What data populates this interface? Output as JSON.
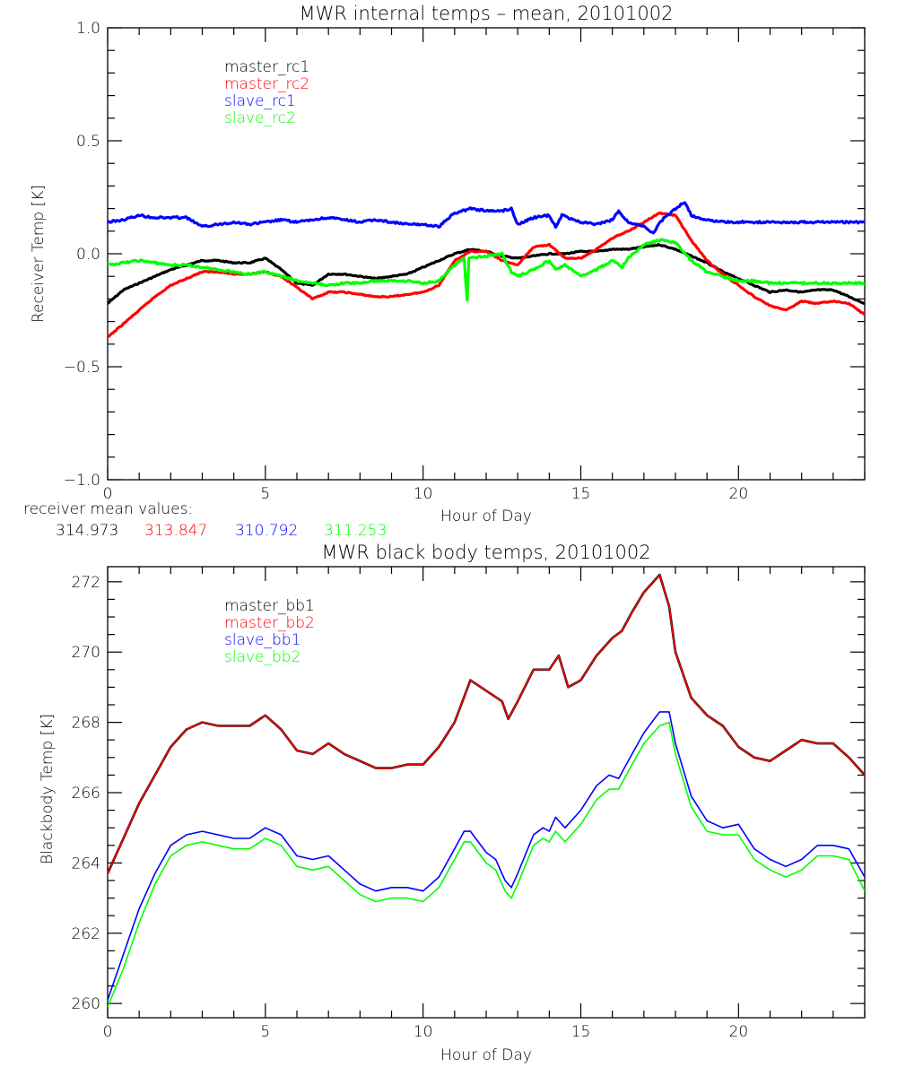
{
  "chart_data": [
    {
      "type": "line",
      "title": "MWR internal temps – mean, 20101002",
      "xlabel": "Hour of Day",
      "ylabel": "Receiver Temp [K]",
      "xlim": [
        0,
        24
      ],
      "ylim": [
        -1.0,
        1.0
      ],
      "xticks": [
        0,
        5,
        10,
        15,
        20
      ],
      "xtick_labels": [
        "0",
        "5",
        "10",
        "15",
        "20"
      ],
      "yticks": [
        -1.0,
        -0.5,
        0.0,
        0.5,
        1.0
      ],
      "ytick_labels": [
        "−1.0",
        "−0.5",
        "0.0",
        "0.5",
        "1.0"
      ],
      "grid": false,
      "legend_position": "top-left-inside",
      "series": [
        {
          "name": "master_rc1",
          "color": "#000000",
          "x": [
            0,
            0.5,
            1,
            1.5,
            2,
            2.5,
            3,
            3.5,
            4,
            4.5,
            5,
            5.5,
            6,
            6.5,
            7,
            7.5,
            8,
            8.5,
            9,
            9.5,
            10,
            10.5,
            11,
            11.5,
            12,
            12.5,
            13,
            13.5,
            14,
            14.5,
            15,
            15.5,
            16,
            16.5,
            17,
            17.5,
            18,
            18.5,
            19,
            19.5,
            20,
            20.5,
            21,
            21.5,
            22,
            22.5,
            23,
            23.5,
            24
          ],
          "y": [
            -0.22,
            -0.16,
            -0.13,
            -0.1,
            -0.07,
            -0.05,
            -0.03,
            -0.03,
            -0.04,
            -0.04,
            -0.02,
            -0.07,
            -0.13,
            -0.14,
            -0.09,
            -0.09,
            -0.1,
            -0.11,
            -0.1,
            -0.09,
            -0.06,
            -0.03,
            0.0,
            0.02,
            0.01,
            -0.01,
            -0.02,
            -0.01,
            0.0,
            0.0,
            0.01,
            0.01,
            0.02,
            0.02,
            0.03,
            0.04,
            0.02,
            -0.01,
            -0.04,
            -0.08,
            -0.11,
            -0.14,
            -0.17,
            -0.16,
            -0.17,
            -0.16,
            -0.16,
            -0.19,
            -0.22
          ]
        },
        {
          "name": "master_rc2",
          "color": "#ff0000",
          "x": [
            0,
            0.5,
            1,
            1.5,
            2,
            2.5,
            3,
            3.5,
            4,
            4.5,
            5,
            5.5,
            6,
            6.5,
            7,
            7.5,
            8,
            8.5,
            9,
            9.5,
            10,
            10.5,
            11,
            11.5,
            12,
            12.5,
            13,
            13.5,
            14,
            14.5,
            15,
            15.5,
            16,
            16.5,
            17,
            17.5,
            18,
            18.5,
            19,
            19.5,
            20,
            20.5,
            21,
            21.5,
            22,
            22.5,
            23,
            23.5,
            24
          ],
          "y": [
            -0.37,
            -0.31,
            -0.25,
            -0.19,
            -0.14,
            -0.11,
            -0.08,
            -0.08,
            -0.09,
            -0.09,
            -0.08,
            -0.1,
            -0.15,
            -0.2,
            -0.17,
            -0.17,
            -0.18,
            -0.19,
            -0.19,
            -0.18,
            -0.17,
            -0.14,
            -0.03,
            0.01,
            0.01,
            -0.03,
            -0.05,
            0.03,
            0.04,
            -0.02,
            -0.02,
            0.02,
            0.07,
            0.1,
            0.14,
            0.18,
            0.17,
            0.06,
            -0.03,
            -0.09,
            -0.14,
            -0.19,
            -0.23,
            -0.25,
            -0.21,
            -0.22,
            -0.21,
            -0.22,
            -0.27
          ]
        },
        {
          "name": "slave_rc1",
          "color": "#0000ff",
          "x": [
            0,
            0.5,
            1,
            1.5,
            2,
            2.5,
            3,
            3.5,
            4,
            4.5,
            5,
            5.5,
            6,
            6.5,
            7,
            7.5,
            8,
            8.5,
            9,
            9.5,
            10,
            10.5,
            11,
            11.5,
            12,
            12.5,
            12.8,
            13,
            13.5,
            14,
            14.2,
            14.4,
            15,
            15.5,
            16,
            16.2,
            16.5,
            17,
            17.3,
            17.5,
            18,
            18.3,
            18.5,
            19,
            19.5,
            20,
            20.5,
            21,
            21.5,
            22,
            22.5,
            23,
            23.5,
            24
          ],
          "y": [
            0.14,
            0.15,
            0.17,
            0.16,
            0.16,
            0.16,
            0.12,
            0.13,
            0.14,
            0.13,
            0.14,
            0.15,
            0.14,
            0.15,
            0.16,
            0.15,
            0.14,
            0.15,
            0.14,
            0.13,
            0.13,
            0.12,
            0.18,
            0.2,
            0.19,
            0.19,
            0.2,
            0.13,
            0.16,
            0.17,
            0.12,
            0.17,
            0.14,
            0.13,
            0.15,
            0.19,
            0.14,
            0.12,
            0.09,
            0.14,
            0.2,
            0.23,
            0.17,
            0.15,
            0.14,
            0.14,
            0.14,
            0.14,
            0.14,
            0.14,
            0.14,
            0.14,
            0.14,
            0.14
          ]
        },
        {
          "name": "slave_rc2",
          "color": "#00ff00",
          "x": [
            0,
            0.5,
            1,
            1.5,
            2,
            2.5,
            3,
            3.5,
            4,
            4.5,
            5,
            5.5,
            6,
            6.5,
            7,
            7.5,
            8,
            8.5,
            9,
            9.5,
            10,
            10.5,
            11,
            11.3,
            11.4,
            11.45,
            11.5,
            12,
            12.5,
            12.8,
            13,
            13.5,
            14,
            14.2,
            14.5,
            15,
            15.5,
            16,
            16.3,
            16.5,
            17,
            17.5,
            18,
            18.5,
            19,
            19.5,
            20,
            20.5,
            21,
            21.5,
            22,
            22.5,
            23,
            23.5,
            24
          ],
          "y": [
            -0.05,
            -0.04,
            -0.03,
            -0.04,
            -0.05,
            -0.05,
            -0.06,
            -0.07,
            -0.08,
            -0.09,
            -0.08,
            -0.1,
            -0.12,
            -0.13,
            -0.14,
            -0.13,
            -0.13,
            -0.12,
            -0.12,
            -0.12,
            -0.13,
            -0.12,
            -0.05,
            -0.02,
            -0.21,
            -0.02,
            -0.02,
            -0.01,
            0.0,
            -0.08,
            -0.1,
            -0.07,
            -0.03,
            -0.07,
            -0.05,
            -0.1,
            -0.07,
            -0.03,
            -0.06,
            -0.02,
            0.04,
            0.06,
            0.05,
            -0.03,
            -0.08,
            -0.1,
            -0.12,
            -0.12,
            -0.13,
            -0.13,
            -0.13,
            -0.13,
            -0.13,
            -0.13,
            -0.13
          ]
        }
      ]
    },
    {
      "type": "line",
      "title": "MWR black body temps, 20101002",
      "xlabel": "Hour of Day",
      "ylabel": "Blackbody Temp [K]",
      "xlim": [
        0,
        24
      ],
      "ylim": [
        259.8,
        272.2
      ],
      "xticks": [
        0,
        5,
        10,
        15,
        20
      ],
      "xtick_labels": [
        "0",
        "5",
        "10",
        "15",
        "20"
      ],
      "yticks": [
        260,
        262,
        264,
        266,
        268,
        270,
        272
      ],
      "ytick_labels": [
        "260",
        "262",
        "264",
        "266",
        "268",
        "270",
        "272"
      ],
      "grid": false,
      "legend_position": "top-left-inside",
      "series": [
        {
          "name": "master_bb1",
          "color": "#000000",
          "x": [
            0,
            0.5,
            1,
            1.5,
            2,
            2.5,
            3,
            3.5,
            4,
            4.5,
            5,
            5.5,
            6,
            6.5,
            7,
            7.5,
            8,
            8.5,
            9,
            9.5,
            10,
            10.5,
            11,
            11.5,
            12,
            12.5,
            12.7,
            13,
            13.5,
            14,
            14.3,
            14.6,
            15,
            15.5,
            16,
            16.3,
            16.6,
            17,
            17.5,
            17.8,
            18,
            18.5,
            19,
            19.5,
            20,
            20.5,
            21,
            21.5,
            22,
            22.5,
            23,
            23.5,
            24
          ],
          "y": [
            263.7,
            264.7,
            265.7,
            266.5,
            267.3,
            267.8,
            268.0,
            267.9,
            267.9,
            267.9,
            268.2,
            267.8,
            267.2,
            267.1,
            267.4,
            267.1,
            266.9,
            266.7,
            266.7,
            266.8,
            266.8,
            267.3,
            268.0,
            269.2,
            268.9,
            268.6,
            268.1,
            268.6,
            269.5,
            269.5,
            269.9,
            269.0,
            269.2,
            269.9,
            270.4,
            270.6,
            271.1,
            271.7,
            272.2,
            271.3,
            270.0,
            268.7,
            268.2,
            267.9,
            267.3,
            267.0,
            266.9,
            267.2,
            267.5,
            267.4,
            267.4,
            267.0,
            266.5
          ]
        },
        {
          "name": "master_bb2",
          "color": "#ff0000",
          "x": [
            0,
            0.5,
            1,
            1.5,
            2,
            2.5,
            3,
            3.5,
            4,
            4.5,
            5,
            5.5,
            6,
            6.5,
            7,
            7.5,
            8,
            8.5,
            9,
            9.5,
            10,
            10.5,
            11,
            11.5,
            12,
            12.5,
            12.7,
            13,
            13.5,
            14,
            14.3,
            14.6,
            15,
            15.5,
            16,
            16.3,
            16.6,
            17,
            17.5,
            17.8,
            18,
            18.5,
            19,
            19.5,
            20,
            20.5,
            21,
            21.5,
            22,
            22.5,
            23,
            23.5,
            24
          ],
          "y": [
            263.7,
            264.7,
            265.7,
            266.5,
            267.3,
            267.8,
            268.0,
            267.9,
            267.9,
            267.9,
            268.2,
            267.8,
            267.2,
            267.1,
            267.4,
            267.1,
            266.9,
            266.7,
            266.7,
            266.8,
            266.8,
            267.3,
            268.0,
            269.2,
            268.9,
            268.6,
            268.1,
            268.6,
            269.5,
            269.5,
            269.9,
            269.0,
            269.2,
            269.9,
            270.4,
            270.6,
            271.1,
            271.7,
            272.2,
            271.3,
            270.0,
            268.7,
            268.2,
            267.9,
            267.3,
            267.0,
            266.9,
            267.2,
            267.5,
            267.4,
            267.4,
            267.0,
            266.5
          ]
        },
        {
          "name": "slave_bb1",
          "color": "#0000ff",
          "x": [
            0,
            0.5,
            1,
            1.5,
            2,
            2.5,
            3,
            3.5,
            4,
            4.5,
            5,
            5.5,
            6,
            6.5,
            7,
            7.5,
            8,
            8.5,
            9,
            9.5,
            10,
            10.5,
            11,
            11.3,
            11.5,
            12,
            12.3,
            12.6,
            12.8,
            13,
            13.5,
            13.8,
            14,
            14.2,
            14.5,
            15,
            15.5,
            15.9,
            16.2,
            16.5,
            17,
            17.5,
            17.8,
            18,
            18.5,
            19,
            19.5,
            20,
            20.5,
            21,
            21.5,
            22,
            22.5,
            23,
            23.5,
            24
          ],
          "y": [
            260.1,
            261.4,
            262.7,
            263.7,
            264.5,
            264.8,
            264.9,
            264.8,
            264.7,
            264.7,
            265.0,
            264.8,
            264.2,
            264.1,
            264.2,
            263.8,
            263.4,
            263.2,
            263.3,
            263.3,
            263.2,
            263.6,
            264.4,
            264.9,
            264.9,
            264.3,
            264.1,
            263.5,
            263.3,
            263.7,
            264.8,
            265.0,
            264.9,
            265.3,
            265.0,
            265.5,
            266.2,
            266.5,
            266.4,
            266.9,
            267.7,
            268.3,
            268.3,
            267.4,
            265.9,
            265.2,
            265.0,
            265.1,
            264.4,
            264.1,
            263.9,
            264.1,
            264.5,
            264.5,
            264.4,
            263.6
          ]
        },
        {
          "name": "slave_bb2",
          "color": "#00ff00",
          "x": [
            0,
            0.5,
            1,
            1.5,
            2,
            2.5,
            3,
            3.5,
            4,
            4.5,
            5,
            5.5,
            6,
            6.5,
            7,
            7.5,
            8,
            8.5,
            9,
            9.5,
            10,
            10.5,
            11,
            11.3,
            11.5,
            12,
            12.3,
            12.6,
            12.8,
            13,
            13.5,
            13.8,
            14,
            14.2,
            14.5,
            15,
            15.5,
            15.9,
            16.2,
            16.5,
            17,
            17.5,
            17.8,
            18,
            18.5,
            19,
            19.5,
            20,
            20.5,
            21,
            21.5,
            22,
            22.5,
            23,
            23.5,
            24
          ],
          "y": [
            259.9,
            261.0,
            262.3,
            263.4,
            264.2,
            264.5,
            264.6,
            264.5,
            264.4,
            264.4,
            264.7,
            264.5,
            263.9,
            263.8,
            263.9,
            263.5,
            263.1,
            262.9,
            263.0,
            263.0,
            262.9,
            263.3,
            264.1,
            264.6,
            264.6,
            264.0,
            263.8,
            263.2,
            263.0,
            263.4,
            264.5,
            264.7,
            264.6,
            264.9,
            264.6,
            265.1,
            265.8,
            266.1,
            266.1,
            266.6,
            267.4,
            267.9,
            268.0,
            267.1,
            265.6,
            264.9,
            264.8,
            264.8,
            264.1,
            263.8,
            263.6,
            263.8,
            264.2,
            264.2,
            264.1,
            263.2
          ]
        }
      ],
      "annotations": []
    }
  ],
  "receiver_mean": {
    "label": "receiver mean values:",
    "values": [
      {
        "text": "314.973",
        "color": "#000000"
      },
      {
        "text": "313.847",
        "color": "#ff0000"
      },
      {
        "text": "310.792",
        "color": "#0000ff"
      },
      {
        "text": "311.253",
        "color": "#00ff00"
      }
    ]
  }
}
